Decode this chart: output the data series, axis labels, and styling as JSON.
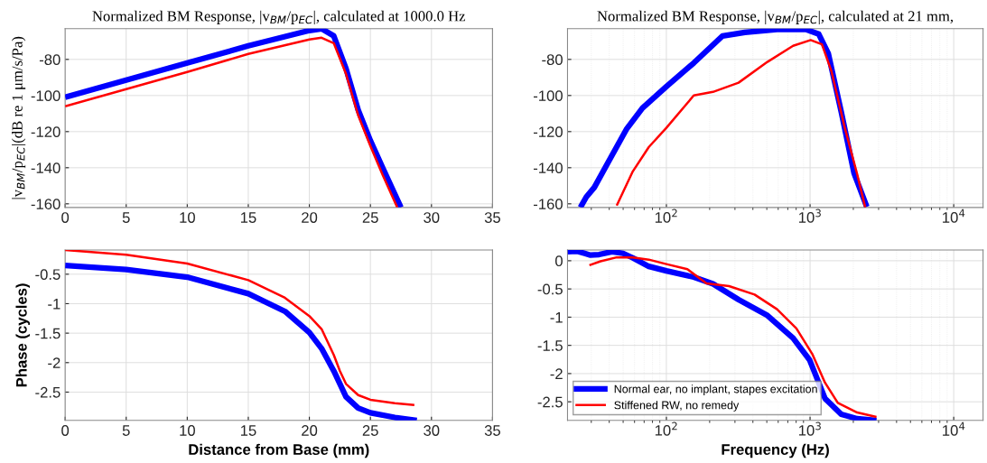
{
  "chart_data": [
    {
      "type": "line",
      "title": "Normalized BM Response, |v$_{BM}$/p$_{EC}$|, calculated at 1000.0 Hz",
      "ylabel": "|v$_{BM}$/p$_{EC}$|(dB re 1 μm/s/Pa)",
      "xlim": [
        0,
        35
      ],
      "xticks": [
        0,
        5,
        10,
        15,
        20,
        25,
        30,
        35
      ],
      "ylim": [
        -162,
        -63
      ],
      "yticks": [
        -160,
        -140,
        -120,
        -100,
        -80
      ],
      "grid": true,
      "series": [
        {
          "color": "#0000ff",
          "x": [
            0,
            5,
            10,
            15,
            20,
            21,
            22,
            23,
            24,
            25,
            26,
            27.5
          ],
          "values": [
            -101,
            -91.5,
            -82,
            -72.5,
            -64,
            -63,
            -67,
            -85,
            -108,
            -125,
            -140,
            -162
          ]
        },
        {
          "color": "#ff0000",
          "x": [
            0,
            5,
            10,
            15,
            20,
            21,
            22,
            23,
            24,
            25,
            26,
            27.2
          ],
          "values": [
            -106,
            -96.5,
            -87,
            -77,
            -69,
            -68,
            -71,
            -88,
            -111,
            -128,
            -144,
            -162
          ]
        }
      ]
    },
    {
      "type": "line",
      "title": "Normalized BM Response, |v$_{BM}$/p$_{EC}$|, calculated at 21 mm,",
      "log": "x",
      "xlim": [
        20.5,
        16000
      ],
      "xticks": [
        {
          "value": 100,
          "label": "10$^{2}$"
        },
        {
          "value": 1000,
          "label": "10$^{3}$"
        },
        {
          "value": 10000,
          "label": "10$^{4}$"
        }
      ],
      "ylim": [
        -162,
        -63
      ],
      "yticks": [
        -160,
        -140,
        -120,
        -100,
        -80
      ],
      "grid": true,
      "series": [
        {
          "color": "#0000ff",
          "x": [
            25.2,
            27.7,
            31.5,
            40.7,
            52.6,
            68,
            100,
            155,
            246,
            352,
            589,
            935,
            1150,
            1340,
            1648,
            2024,
            2483
          ],
          "values": [
            -162,
            -156.2,
            -150.9,
            -134.8,
            -118.8,
            -107,
            -95,
            -82,
            -67,
            -65,
            -63.4,
            -63.4,
            -66,
            -76.8,
            -109,
            -143,
            -161.7
          ]
        },
        {
          "color": "#ff0000",
          "x": [
            45.1,
            58.4,
            75.4,
            100,
            155,
            211,
            318,
            505,
            762,
            1010,
            1210,
            1412,
            1733,
            2128,
            2422
          ],
          "values": [
            -161,
            -142,
            -128.6,
            -117.9,
            -100,
            -98,
            -92.9,
            -81.4,
            -72.5,
            -69.3,
            -71.7,
            -86.8,
            -117,
            -143.6,
            -162
          ]
        }
      ]
    },
    {
      "type": "line",
      "xlabel": "Distance from Base (mm)",
      "ylabel": "Phase (cycles)",
      "xlim": [
        0,
        35
      ],
      "xticks": [
        0,
        5,
        10,
        15,
        20,
        25,
        30,
        35
      ],
      "ylim": [
        -2.98,
        -0.09
      ],
      "yticks": [
        -2.5,
        -2,
        -1.5,
        -1,
        -0.5
      ],
      "grid": true,
      "series": [
        {
          "color": "#0000ff",
          "x": [
            0,
            5,
            10,
            15,
            18,
            20,
            21,
            22,
            23,
            24,
            25,
            27,
            28.8
          ],
          "values": [
            -0.35,
            -0.42,
            -0.55,
            -0.83,
            -1.13,
            -1.49,
            -1.76,
            -2.14,
            -2.58,
            -2.77,
            -2.85,
            -2.93,
            -2.98
          ]
        },
        {
          "color": "#ff0000",
          "x": [
            0,
            5,
            10,
            15,
            18,
            20,
            21,
            22,
            22.5,
            23,
            24,
            25,
            27,
            28.6
          ],
          "values": [
            -0.09,
            -0.17,
            -0.32,
            -0.6,
            -0.9,
            -1.21,
            -1.43,
            -1.87,
            -2.14,
            -2.36,
            -2.55,
            -2.63,
            -2.69,
            -2.72
          ]
        }
      ]
    },
    {
      "type": "line",
      "xlabel": "Frequency (Hz)",
      "log": "x",
      "xlim": [
        20.5,
        16000
      ],
      "xticks": [
        {
          "value": 100,
          "label": "10$^{2}$"
        },
        {
          "value": 1000,
          "label": "10$^{3}$"
        },
        {
          "value": 10000,
          "label": "10$^{4}$"
        }
      ],
      "ylim": [
        -2.83,
        0.19
      ],
      "yticks": [
        -2.5,
        -2,
        -1.5,
        -1,
        -0.5,
        0
      ],
      "grid": true,
      "legend": "bottom left",
      "series": [
        {
          "name": "Normal ear, no implant, stapes excitation",
          "color": "#0000ff",
          "x": [
            20.5,
            23.7,
            27,
            29.6,
            34,
            41.8,
            50,
            58.4,
            75.4,
            100,
            155,
            211,
            318,
            505,
            762,
            993,
            1270,
            1648,
            2128,
            2900
          ],
          "values": [
            0.16,
            0.17,
            0.13,
            0.1,
            0.11,
            0.16,
            0.13,
            0.05,
            -0.1,
            -0.18,
            -0.29,
            -0.41,
            -0.69,
            -0.97,
            -1.37,
            -1.76,
            -2.44,
            -2.72,
            -2.8,
            -2.83
          ]
        },
        {
          "name": "Stiffened RW, no remedy",
          "color": "#ff0000",
          "x": [
            29.1,
            34.8,
            45.1,
            58.4,
            75.4,
            100,
            140,
            190,
            273,
            411,
            589,
            803,
            1035,
            1270,
            1560,
            2128,
            2900
          ],
          "values": [
            -0.08,
            -0.01,
            0.06,
            0.06,
            0.02,
            -0.06,
            -0.15,
            -0.4,
            -0.45,
            -0.6,
            -0.86,
            -1.2,
            -1.65,
            -2.16,
            -2.52,
            -2.69,
            -2.77
          ]
        }
      ]
    }
  ]
}
